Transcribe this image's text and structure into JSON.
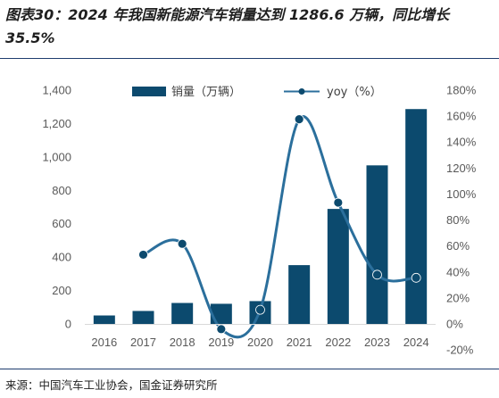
{
  "title": "图表30：2024 年我国新能源汽车销量达到 1286.6 万辆，同比增长 35.5%",
  "source": "来源：中国汽车工业协会，国金证券研究所",
  "colors": {
    "bar": "#0c4a6e",
    "line": "#2b6f9c",
    "marker": "#0c4a6e",
    "rule": "#1f3d6e"
  },
  "chart_data": {
    "type": "bar",
    "categories": [
      "2016",
      "2017",
      "2018",
      "2019",
      "2020",
      "2021",
      "2022",
      "2023",
      "2024"
    ],
    "series": [
      {
        "name": "销量（万辆）",
        "type": "bar",
        "axis": "left",
        "values": [
          50.7,
          77.7,
          125.6,
          120.6,
          136.7,
          352.1,
          688.7,
          949.5,
          1286.6
        ]
      },
      {
        "name": "yoy（%）",
        "type": "line",
        "axis": "right",
        "values": [
          null,
          53.3,
          61.7,
          -4.0,
          10.9,
          157.6,
          93.4,
          37.9,
          35.5
        ]
      }
    ],
    "left_axis": {
      "ylim": [
        0,
        1400
      ],
      "ticks": [
        "0",
        "200",
        "400",
        "600",
        "800",
        "1,000",
        "1,200",
        "1,400"
      ]
    },
    "right_axis": {
      "ylim": [
        -20,
        180
      ],
      "ticks": [
        "-20%",
        "0%",
        "20%",
        "40%",
        "60%",
        "80%",
        "100%",
        "120%",
        "140%",
        "160%",
        "180%"
      ]
    },
    "legend": {
      "position": "top",
      "bar_label": "销量（万辆）",
      "line_label": "yoy（%）"
    },
    "grid": false
  }
}
